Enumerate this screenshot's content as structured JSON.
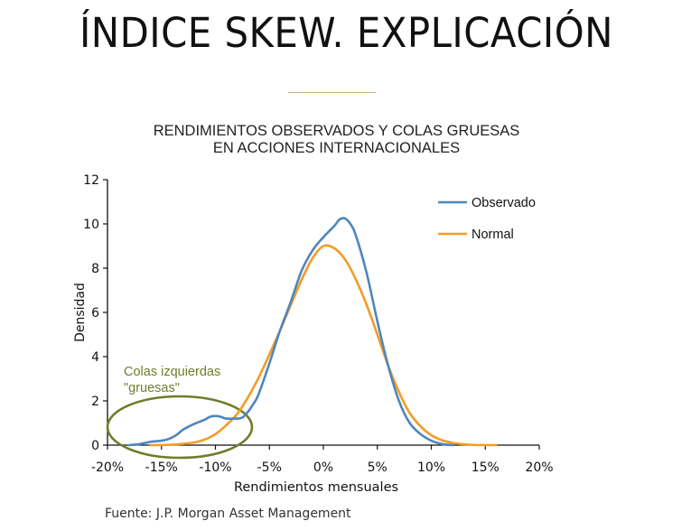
{
  "slide": {
    "title": "ÍNDICE SKEW. EXPLICACIÓN",
    "rule_color": "#c9b37a",
    "source": "Fuente: J.P. Morgan Asset Management"
  },
  "chart_data": {
    "type": "line",
    "title": "RENDIMIENTOS OBSERVADOS Y COLAS GRUESAS",
    "subtitle": "EN ACCIONES INTERNACIONALES",
    "xlabel": "Rendimientos mensuales",
    "ylabel": "Densidad",
    "xlim": [
      -20,
      20
    ],
    "ylim": [
      0,
      12
    ],
    "x_ticks": [
      -20,
      -15,
      -10,
      -5,
      0,
      5,
      10,
      15,
      20
    ],
    "x_tick_labels": [
      "-20%",
      "-15%",
      "-10%",
      "-5%",
      "0%",
      "5%",
      "10%",
      "15%",
      "20%"
    ],
    "y_ticks": [
      0,
      2,
      4,
      6,
      8,
      10,
      12
    ],
    "y_tick_labels": [
      "0",
      "2",
      "4",
      "6",
      "8",
      "10",
      "12"
    ],
    "grid": false,
    "legend_position": "upper right",
    "series": [
      {
        "name": "Observado",
        "color": "#4f86bd",
        "x": [
          -18,
          -17,
          -16,
          -15,
          -14.5,
          -14,
          -13.5,
          -13,
          -12,
          -11,
          -10.5,
          -10,
          -9.5,
          -9,
          -8,
          -7.5,
          -7,
          -6.5,
          -6,
          -5,
          -4,
          -3,
          -2,
          -1,
          0,
          1,
          1.5,
          2,
          2.5,
          3,
          4,
          5,
          6,
          7,
          8,
          9,
          10,
          11,
          12
        ],
        "values": [
          0,
          0.05,
          0.15,
          0.2,
          0.25,
          0.35,
          0.5,
          0.7,
          0.95,
          1.15,
          1.28,
          1.32,
          1.28,
          1.2,
          1.2,
          1.25,
          1.5,
          1.85,
          2.3,
          3.7,
          5.2,
          6.5,
          7.9,
          8.8,
          9.4,
          9.9,
          10.2,
          10.25,
          10.0,
          9.5,
          7.8,
          5.6,
          3.6,
          2.0,
          1.0,
          0.5,
          0.2,
          0.05,
          0
        ]
      },
      {
        "name": "Normal",
        "color": "#f59b26",
        "x": [
          -16,
          -14,
          -12,
          -11,
          -10,
          -9,
          -8,
          -7,
          -6,
          -5,
          -4,
          -3,
          -2,
          -1,
          0,
          1,
          2,
          3,
          4,
          5,
          6,
          7,
          8,
          9,
          10,
          11,
          12,
          13,
          14,
          16
        ],
        "values": [
          0,
          0.02,
          0.12,
          0.25,
          0.5,
          0.9,
          1.4,
          2.15,
          3.05,
          4.1,
          5.2,
          6.35,
          7.5,
          8.45,
          9.0,
          8.9,
          8.4,
          7.5,
          6.35,
          5.0,
          3.6,
          2.4,
          1.45,
          0.85,
          0.45,
          0.22,
          0.1,
          0.04,
          0.01,
          0
        ]
      }
    ],
    "annotations": [
      {
        "text_line1": "Colas izquierdas",
        "text_line2": "\"gruesas\"",
        "color": "#6e7d2b",
        "shape": "ellipse",
        "center": [
          -13.4,
          0.8
        ],
        "note": "Ellipse highlighting the fat left tail"
      }
    ]
  }
}
